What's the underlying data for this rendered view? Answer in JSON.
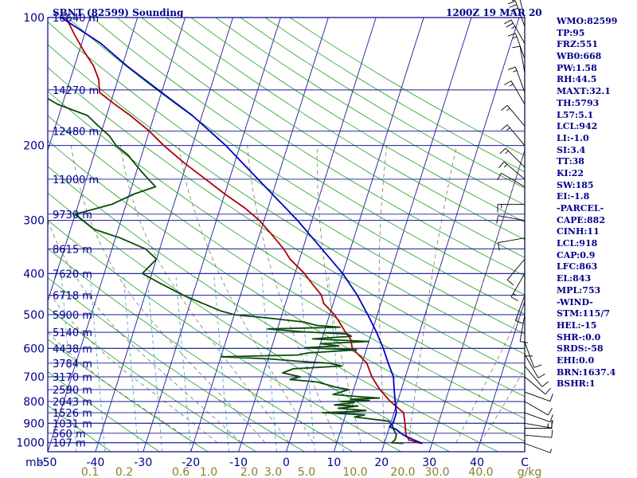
{
  "header": {
    "station": "SBNT (82599) Sounding",
    "datetime": "1200Z 19 MAR 20"
  },
  "indices": [
    "WMO:82599",
    "TP:95",
    "FRZ:551",
    "WB0:668",
    "PW:1.58",
    "RH:44.5",
    "MAXT:32.1",
    "TH:5793",
    "L57:5.1",
    "LCL:942",
    "LI:-1.0",
    "SI:3.4",
    "TT:38",
    "KI:22",
    "SW:185",
    "EI:-1.8",
    "-PARCEL-",
    "CAPE:882",
    "CINH:11",
    "LCL:918",
    "CAP:0.9",
    "LFC:863",
    "EL:843",
    "MPL:753",
    "-WIND-",
    "STM:115/7",
    "HEL:-15",
    "SHR-:0.0",
    "SRDS:-58",
    "EHI:0.0",
    "BRN:1637.4",
    "BSHR:1"
  ],
  "chart_data": {
    "type": "line",
    "title": "SBNT (82599) Sounding",
    "subtitle": "1200Z 19 MAR 20",
    "ylabel": "mb",
    "xlabel": "C",
    "mixing_ratio_unit": "g/kg",
    "y_scale": "log",
    "ylim": [
      1050,
      100
    ],
    "xlim": [
      -50,
      50
    ],
    "pressure_ticks": [
      100,
      200,
      300,
      400,
      500,
      600,
      700,
      800,
      900,
      1000
    ],
    "temperature_ticks": [
      "-50",
      "-40",
      "-30",
      "-20",
      "-10",
      "0",
      "10",
      "20",
      "30",
      "40",
      "C"
    ],
    "mixing_ratio_labels": [
      "0.1",
      "0.2",
      "0.6",
      "1.0",
      "2.0",
      "3.0",
      "5.0",
      "10.0",
      "20.0",
      "30.0",
      "40.0",
      "g/kg"
    ],
    "height_levels": [
      {
        "p": 100,
        "label": "16640 m"
      },
      {
        "p": 148,
        "label": "14270 m"
      },
      {
        "p": 185,
        "label": "12480 m"
      },
      {
        "p": 240,
        "label": "11000 m"
      },
      {
        "p": 290,
        "label": "9730 m"
      },
      {
        "p": 350,
        "label": "8615 m"
      },
      {
        "p": 400,
        "label": "7620 m"
      },
      {
        "p": 450,
        "label": "6718 m"
      },
      {
        "p": 500,
        "label": "5900 m"
      },
      {
        "p": 550,
        "label": "5140 m"
      },
      {
        "p": 600,
        "label": "4438 m"
      },
      {
        "p": 650,
        "label": "3784 m"
      },
      {
        "p": 700,
        "label": "3170 m"
      },
      {
        "p": 750,
        "label": "2590 m"
      },
      {
        "p": 800,
        "label": "2043 m"
      },
      {
        "p": 850,
        "label": "1526 m"
      },
      {
        "p": 900,
        "label": "1031 m"
      },
      {
        "p": 950,
        "label": "560 m"
      },
      {
        "p": 1000,
        "label": "107 m"
      }
    ],
    "series": [
      {
        "color": "#b00000",
        "points": [
          [
            1004,
            28.0
          ],
          [
            1000,
            27.0
          ],
          [
            985,
            25.0
          ],
          [
            960,
            24.0
          ],
          [
            930,
            23.5
          ],
          [
            900,
            23.0
          ],
          [
            850,
            22.0
          ],
          [
            800,
            18.5
          ],
          [
            750,
            15.5
          ],
          [
            700,
            13.0
          ],
          [
            650,
            11.0
          ],
          [
            600,
            7.0
          ],
          [
            570,
            6.0
          ],
          [
            550,
            4.5
          ],
          [
            520,
            2.5
          ],
          [
            500,
            1.0
          ],
          [
            470,
            -2.0
          ],
          [
            450,
            -3.0
          ],
          [
            420,
            -6.0
          ],
          [
            400,
            -8.0
          ],
          [
            370,
            -12.0
          ],
          [
            350,
            -14.0
          ],
          [
            320,
            -18.0
          ],
          [
            300,
            -21.0
          ],
          [
            280,
            -25.0
          ],
          [
            260,
            -30.0
          ],
          [
            240,
            -35.0
          ],
          [
            220,
            -40.5
          ],
          [
            200,
            -46.0
          ],
          [
            185,
            -50.0
          ],
          [
            170,
            -55.0
          ],
          [
            160,
            -59.0
          ],
          [
            150,
            -63.0
          ],
          [
            140,
            -64.0
          ],
          [
            130,
            -66.0
          ],
          [
            120,
            -69.0
          ],
          [
            110,
            -72.0
          ],
          [
            100,
            -75.0
          ]
        ]
      },
      {
        "color": "#0a4a0a",
        "points": [
          [
            1004,
            24.0
          ],
          [
            1000,
            21.5
          ],
          [
            985,
            22.0
          ],
          [
            960,
            22.0
          ],
          [
            930,
            21.0
          ],
          [
            910,
            20.5
          ],
          [
            890,
            19.5
          ],
          [
            870,
            12.0
          ],
          [
            860,
            14.0
          ],
          [
            850,
            5.0
          ],
          [
            845,
            11.0
          ],
          [
            840,
            14.0
          ],
          [
            830,
            8.0
          ],
          [
            820,
            12.0
          ],
          [
            815,
            7.0
          ],
          [
            805,
            11.0
          ],
          [
            800,
            8.0
          ],
          [
            795,
            14.0
          ],
          [
            790,
            10.0
          ],
          [
            785,
            16.0
          ],
          [
            780,
            12.0
          ],
          [
            770,
            6.0
          ],
          [
            750,
            9.0
          ],
          [
            740,
            6.0
          ],
          [
            720,
            2.0
          ],
          [
            710,
            -4.0
          ],
          [
            700,
            -2.0
          ],
          [
            685,
            -6.0
          ],
          [
            670,
            -4.0
          ],
          [
            660,
            6.0
          ],
          [
            650,
            3.0
          ],
          [
            645,
            -2.0
          ],
          [
            635,
            -10.0
          ],
          [
            628,
            -20.0
          ],
          [
            622,
            -4.0
          ],
          [
            615,
            -2.0
          ],
          [
            605,
            8.0
          ],
          [
            598,
            -3.0
          ],
          [
            592,
            4.0
          ],
          [
            585,
            0.0
          ],
          [
            578,
            10.0
          ],
          [
            570,
            -2.0
          ],
          [
            562,
            6.0
          ],
          [
            555,
            5.0
          ],
          [
            548,
            -5.0
          ],
          [
            540,
            -12.0
          ],
          [
            535,
            3.0
          ],
          [
            530,
            -2.0
          ],
          [
            520,
            -5.0
          ],
          [
            510,
            -12.0
          ],
          [
            500,
            -20.0
          ],
          [
            490,
            -23.0
          ],
          [
            450,
            -32.0
          ],
          [
            420,
            -38.0
          ],
          [
            400,
            -42.0
          ],
          [
            370,
            -40.0
          ],
          [
            350,
            -43.0
          ],
          [
            330,
            -49.0
          ],
          [
            315,
            -55.0
          ],
          [
            300,
            -58.0
          ],
          [
            290,
            -60.0
          ],
          [
            275,
            -53.0
          ],
          [
            260,
            -49.0
          ],
          [
            250,
            -45.0
          ],
          [
            240,
            -47.0
          ],
          [
            230,
            -49.0
          ],
          [
            220,
            -51.0
          ],
          [
            210,
            -53.0
          ],
          [
            200,
            -56.0
          ],
          [
            190,
            -58.0
          ],
          [
            180,
            -61.0
          ],
          [
            170,
            -64.0
          ],
          [
            160,
            -71.0
          ],
          [
            150,
            -76.0
          ],
          [
            140,
            -78.0
          ],
          [
            130,
            -78.0
          ],
          [
            120,
            -80.0
          ],
          [
            110,
            -83.0
          ],
          [
            100,
            -86.0
          ]
        ]
      },
      {
        "color": "#0000c0",
        "points": [
          [
            1004,
            28.0
          ],
          [
            985,
            26.0
          ],
          [
            960,
            23.5
          ],
          [
            930,
            21.5
          ],
          [
            918,
            20.0
          ],
          [
            900,
            20.5
          ],
          [
            850,
            20.5
          ],
          [
            800,
            19.5
          ],
          [
            750,
            18.5
          ],
          [
            700,
            17.5
          ],
          [
            650,
            15.5
          ],
          [
            600,
            13.5
          ],
          [
            550,
            11.0
          ],
          [
            500,
            8.0
          ],
          [
            450,
            4.5
          ],
          [
            400,
            0.0
          ],
          [
            350,
            -6.0
          ],
          [
            300,
            -13.0
          ],
          [
            250,
            -22.0
          ],
          [
            200,
            -33.0
          ],
          [
            170,
            -42.0
          ],
          [
            150,
            -50.0
          ],
          [
            130,
            -59.0
          ],
          [
            115,
            -66.0
          ],
          [
            100,
            -76.0
          ]
        ]
      }
    ],
    "winds": [
      {
        "p": 1004,
        "dir": 110,
        "spd": 5
      },
      {
        "p": 960,
        "dir": 95,
        "spd": 10
      },
      {
        "p": 925,
        "dir": 90,
        "spd": 15
      },
      {
        "p": 900,
        "dir": 100,
        "spd": 15
      },
      {
        "p": 850,
        "dir": 110,
        "spd": 10
      },
      {
        "p": 800,
        "dir": 120,
        "spd": 10
      },
      {
        "p": 760,
        "dir": 110,
        "spd": 10
      },
      {
        "p": 700,
        "dir": 130,
        "spd": 10
      },
      {
        "p": 660,
        "dir": 140,
        "spd": 10
      },
      {
        "p": 620,
        "dir": 150,
        "spd": 10
      },
      {
        "p": 580,
        "dir": 160,
        "spd": 10
      },
      {
        "p": 540,
        "dir": 180,
        "spd": 10
      },
      {
        "p": 500,
        "dir": 190,
        "spd": 10
      },
      {
        "p": 450,
        "dir": 200,
        "spd": 10
      },
      {
        "p": 400,
        "dir": 210,
        "spd": 15
      },
      {
        "p": 370,
        "dir": 220,
        "spd": 10
      },
      {
        "p": 330,
        "dir": 260,
        "spd": 10
      },
      {
        "p": 300,
        "dir": 280,
        "spd": 10
      },
      {
        "p": 275,
        "dir": 270,
        "spd": 15
      },
      {
        "p": 250,
        "dir": 300,
        "spd": 10
      },
      {
        "p": 240,
        "dir": 310,
        "spd": 15
      },
      {
        "p": 225,
        "dir": 315,
        "spd": 15
      },
      {
        "p": 200,
        "dir": 320,
        "spd": 15
      },
      {
        "p": 180,
        "dir": 320,
        "spd": 15
      },
      {
        "p": 160,
        "dir": 330,
        "spd": 15
      },
      {
        "p": 150,
        "dir": 340,
        "spd": 15
      },
      {
        "p": 135,
        "dir": 350,
        "spd": 10
      },
      {
        "p": 125,
        "dir": 340,
        "spd": 15
      },
      {
        "p": 115,
        "dir": 330,
        "spd": 25
      },
      {
        "p": 105,
        "dir": 340,
        "spd": 30
      },
      {
        "p": 100,
        "dir": 345,
        "spd": 30
      }
    ],
    "grid": true
  }
}
